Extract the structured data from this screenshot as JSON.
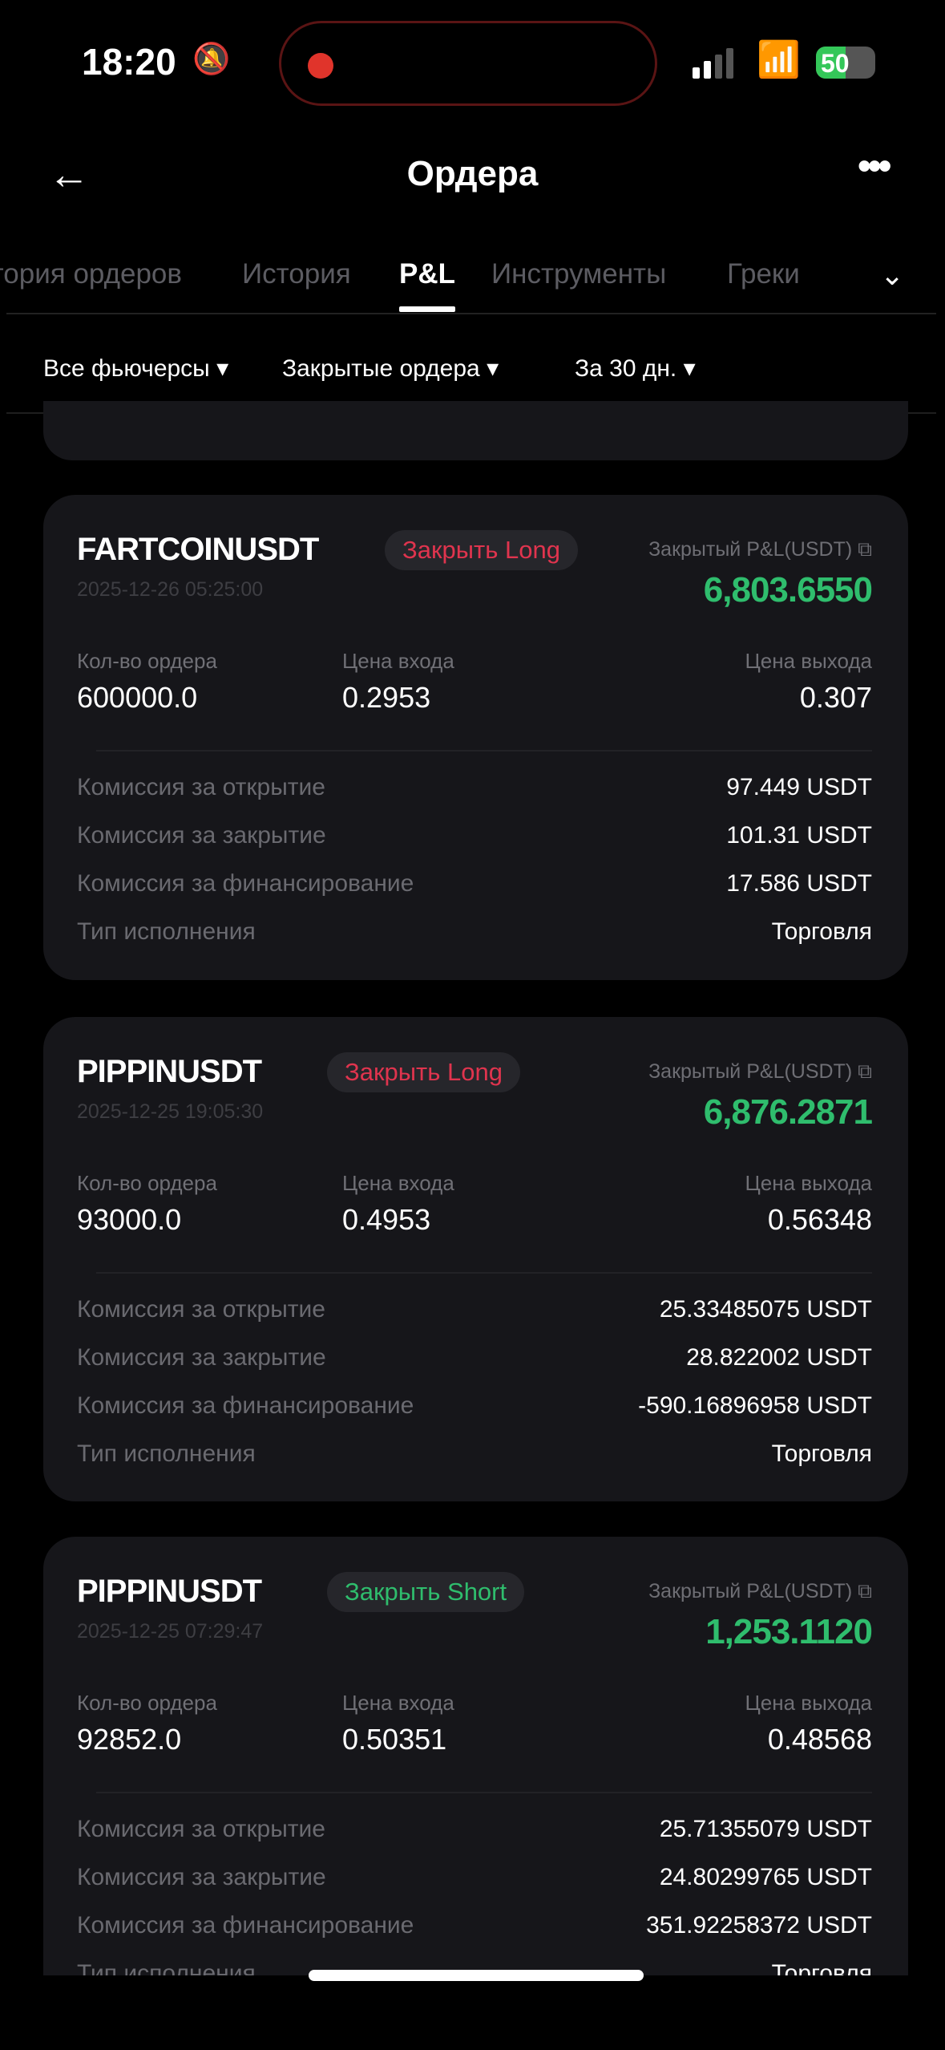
{
  "status": {
    "time": "18:20",
    "battery": "50",
    "battery_level": 0.5,
    "icons": [
      "bell-slash-icon",
      "recording-dot-icon",
      "signal-icon",
      "wifi-icon",
      "battery-charging-icon"
    ]
  },
  "header": {
    "title": "Ордера",
    "back_icon": "arrow-left-icon",
    "more_icon": "ellipsis-icon"
  },
  "tabs": [
    {
      "label": "История ордеров",
      "visible": "ория ордеров"
    },
    {
      "label": "История"
    },
    {
      "label": "P&L",
      "active": true
    },
    {
      "label": "Инструменты"
    },
    {
      "label": "Греки"
    }
  ],
  "filters": [
    "Все фьючерсы ▾",
    "Закрытые ордера ▾",
    "За 30 дн. ▾"
  ],
  "labels": {
    "pnl": "Закрытый P&L(USDT)",
    "qty": "Кол-во ордера",
    "entry": "Цена входа",
    "exit": "Цена выхода",
    "fee_open": "Комиссия за открытие",
    "fee_close": "Комиссия за закрытие",
    "fee_funding": "Комиссия за финансирование",
    "exec_type": "Тип исполнения"
  },
  "colors": {
    "profit": "#2fbd6d",
    "long_close": "#e0344e",
    "short_close": "#2fbd6d",
    "card": "#16161a"
  },
  "orders": [
    {
      "symbol": "FARTCOINUSDT",
      "side": "Закрыть Long",
      "date": "2025-12-26 05:25:00",
      "pnl": "6,803.6550",
      "qty": "600000.0",
      "entry": "0.2953",
      "exit": "0.307",
      "fee_open": "97.449 USDT",
      "fee_close": "101.31 USDT",
      "fee_funding": "17.586 USDT",
      "exec_type": "Торговля"
    },
    {
      "symbol": "PIPPINUSDT",
      "side": "Закрыть Long",
      "date": "2025-12-25 19:05:30",
      "pnl": "6,876.2871",
      "qty": "93000.0",
      "entry": "0.4953",
      "exit": "0.56348",
      "fee_open": "25.33485075 USDT",
      "fee_close": "28.822002 USDT",
      "fee_funding": "-590.16896958 USDT",
      "exec_type": "Торговля"
    },
    {
      "symbol": "PIPPINUSDT",
      "side": "Закрыть Short",
      "date": "2025-12-25 07:29:47",
      "pnl": "1,253.1120",
      "qty": "92852.0",
      "entry": "0.50351",
      "exit": "0.48568",
      "fee_open": "25.71355079 USDT",
      "fee_close": "24.80299765 USDT",
      "fee_funding": "351.92258372 USDT",
      "exec_type": "Торговля"
    }
  ]
}
